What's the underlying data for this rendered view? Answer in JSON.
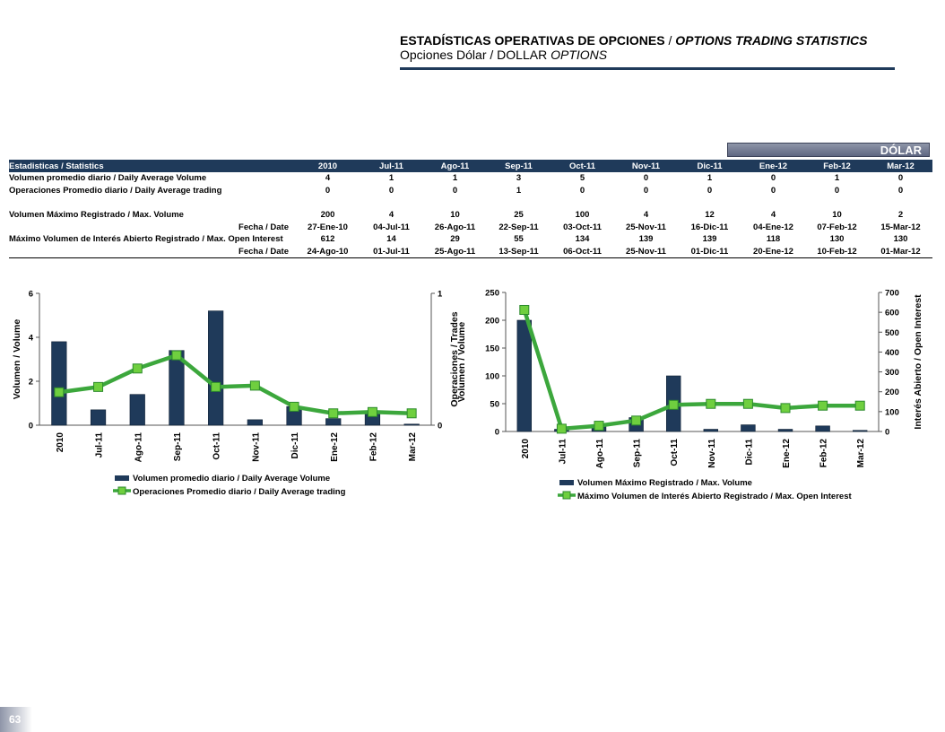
{
  "header": {
    "title_es": "ESTADÍSTICAS OPERATIVAS DE OPCIONES",
    "title_sep": " / ",
    "title_en": "OPTIONS TRADING STATISTICS",
    "subtitle_es": "Opciones Dólar / DOLLAR ",
    "subtitle_en": "OPTIONS"
  },
  "badge": "DÓLAR",
  "table": {
    "header_label": "Estadisticas / Statistics",
    "columns": [
      "2010",
      "Jul-11",
      "Ago-11",
      "Sep-11",
      "Oct-11",
      "Nov-11",
      "Dic-11",
      "Ene-12",
      "Feb-12",
      "Mar-12"
    ],
    "rows_top": [
      {
        "label": "Volumen promedio diario / Daily Average Volume",
        "values": [
          "4",
          "1",
          "1",
          "3",
          "5",
          "0",
          "1",
          "0",
          "1",
          "0"
        ]
      },
      {
        "label": "Operaciones Promedio diario / Daily Average trading",
        "values": [
          "0",
          "0",
          "0",
          "1",
          "0",
          "0",
          "0",
          "0",
          "0",
          "0"
        ]
      }
    ],
    "rows_bottom": [
      {
        "label": "Volumen Máximo Registrado / Max. Volume",
        "align": "left",
        "values": [
          "200",
          "4",
          "10",
          "25",
          "100",
          "4",
          "12",
          "4",
          "10",
          "2"
        ]
      },
      {
        "label": "Fecha / Date",
        "align": "right",
        "values": [
          "27-Ene-10",
          "04-Jul-11",
          "26-Ago-11",
          "22-Sep-11",
          "03-Oct-11",
          "25-Nov-11",
          "16-Dic-11",
          "04-Ene-12",
          "07-Feb-12",
          "15-Mar-12"
        ]
      },
      {
        "label": "Máximo Volumen de Interés Abierto Registrado / Max. Open Interest",
        "align": "left",
        "values": [
          "612",
          "14",
          "29",
          "55",
          "134",
          "139",
          "139",
          "118",
          "130",
          "130"
        ]
      },
      {
        "label": "Fecha / Date",
        "align": "right",
        "values": [
          "24-Ago-10",
          "01-Jul-11",
          "25-Ago-11",
          "13-Sep-11",
          "06-Oct-11",
          "25-Nov-11",
          "01-Dic-11",
          "20-Ene-12",
          "10-Feb-12",
          "01-Mar-12"
        ]
      }
    ]
  },
  "colors": {
    "bar": "#1f3a5a",
    "line": "#3ca73c",
    "marker": "#6fcf3f",
    "header_bg": "#1f3a5a"
  },
  "chart_data": [
    {
      "type": "bar",
      "categories": [
        "2010",
        "Jul-11",
        "Ago-11",
        "Sep-11",
        "Oct-11",
        "Nov-11",
        "Dic-11",
        "Ene-12",
        "Feb-12",
        "Mar-12"
      ],
      "ylabel": "Volumen / Volume",
      "y2label": "Operaciones / Trades",
      "ylim": [
        0,
        6
      ],
      "yticks": [
        "0",
        "2",
        "4",
        "6"
      ],
      "y2lim": [
        0,
        1
      ],
      "y2ticks": [
        "0",
        "1"
      ],
      "series": [
        {
          "name": "Volumen promedio diario / Daily Average Volume",
          "type": "bar",
          "axis": "left",
          "values": [
            3.8,
            0.7,
            1.4,
            3.4,
            5.2,
            0.25,
            0.85,
            0.3,
            0.5,
            0.05
          ]
        },
        {
          "name": "Operaciones Promedio diario / Daily Average trading",
          "type": "line",
          "axis": "right",
          "values": [
            0.25,
            0.29,
            0.43,
            0.53,
            0.29,
            0.3,
            0.14,
            0.09,
            0.1,
            0.09
          ]
        }
      ],
      "legend": "bottom"
    },
    {
      "type": "bar",
      "categories": [
        "2010",
        "Jul-11",
        "Ago-11",
        "Sep-11",
        "Oct-11",
        "Nov-11",
        "Dic-11",
        "Ene-12",
        "Feb-12",
        "Mar-12"
      ],
      "ylabel": "Volumen / Volume",
      "y2label": "Interés Abierto / Open Interest",
      "ylim": [
        0,
        250
      ],
      "yticks": [
        "0",
        "50",
        "100",
        "150",
        "200",
        "250"
      ],
      "y2lim": [
        0,
        700
      ],
      "y2ticks": [
        "0",
        "100",
        "200",
        "300",
        "400",
        "500",
        "600",
        "700"
      ],
      "series": [
        {
          "name": "Volumen Máximo Registrado  / Max. Volume",
          "type": "bar",
          "axis": "left",
          "values": [
            200,
            4,
            10,
            25,
            100,
            4,
            12,
            4,
            10,
            2
          ]
        },
        {
          "name": "Máximo Volumen de Interés Abierto Registrado  / Max. Open Interest",
          "type": "line",
          "axis": "right",
          "values": [
            612,
            14,
            29,
            55,
            134,
            139,
            139,
            118,
            130,
            130
          ]
        }
      ],
      "legend": "bottom"
    }
  ],
  "page_number": "63"
}
